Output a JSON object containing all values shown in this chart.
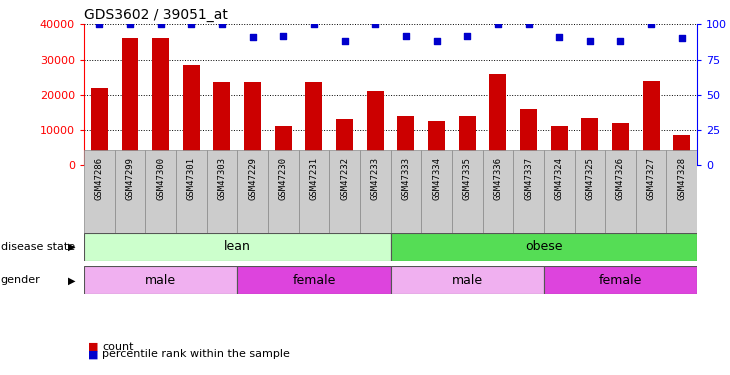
{
  "title": "GDS3602 / 39051_at",
  "samples": [
    "GSM47286",
    "GSM47299",
    "GSM47300",
    "GSM47301",
    "GSM47303",
    "GSM47229",
    "GSM47230",
    "GSM47231",
    "GSM47232",
    "GSM47233",
    "GSM47333",
    "GSM47334",
    "GSM47335",
    "GSM47336",
    "GSM47337",
    "GSM47324",
    "GSM47325",
    "GSM47326",
    "GSM47327",
    "GSM47328"
  ],
  "counts": [
    22000,
    36000,
    36000,
    28500,
    23500,
    23500,
    11000,
    23500,
    13000,
    21000,
    14000,
    12500,
    14000,
    26000,
    16000,
    11000,
    13500,
    12000,
    24000,
    8500
  ],
  "percentiles": [
    100,
    100,
    100,
    100,
    100,
    91,
    92,
    100,
    88,
    100,
    92,
    88,
    92,
    100,
    100,
    91,
    88,
    88,
    100,
    90
  ],
  "bar_color": "#cc0000",
  "dot_color": "#0000cc",
  "ylim_left": [
    0,
    40000
  ],
  "ylim_right": [
    0,
    100
  ],
  "yticks_left": [
    0,
    10000,
    20000,
    30000,
    40000
  ],
  "yticks_right": [
    0,
    25,
    50,
    75,
    100
  ],
  "lean_light": "#ccffcc",
  "lean_dark": "#55cc55",
  "obese_light": "#99ee99",
  "obese_dark": "#33cc33",
  "male_light": "#f0b0f0",
  "female_dark": "#dd44dd",
  "tick_bg": "#cccccc",
  "tick_border": "#888888"
}
